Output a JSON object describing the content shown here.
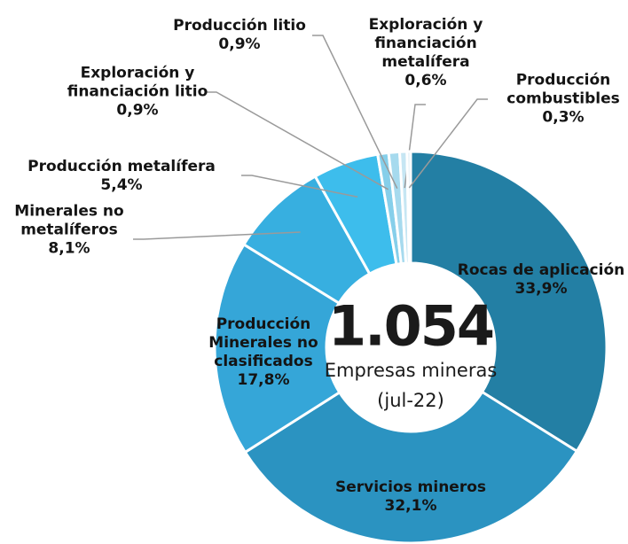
{
  "chart_data": {
    "type": "donut",
    "categories": [
      "Rocas de aplicación",
      "Servicios mineros",
      "Producción Minerales no clasificados",
      "Minerales no metalíferos",
      "Producción metalífera",
      "Exploración y financiación litio",
      "Producción litio",
      "Exploración y financiación metalífera",
      "Producción combustibles"
    ],
    "values": [
      33.9,
      32.1,
      17.8,
      8.1,
      5.4,
      0.9,
      0.9,
      0.6,
      0.3
    ],
    "value_labels": [
      "33,9%",
      "32,1%",
      "17,8%",
      "8,1%",
      "5,4%",
      "0,9%",
      "0,9%",
      "0,6%",
      "0,3%"
    ],
    "colors": [
      "#237fa4",
      "#2b93c1",
      "#35a6d8",
      "#37afe0",
      "#3dbdec",
      "#86cfea",
      "#a6daee",
      "#c6e6f3",
      "#dcedf5"
    ],
    "annotations": [
      "1.054",
      "Empresas mineras",
      "(jul-22)"
    ]
  }
}
